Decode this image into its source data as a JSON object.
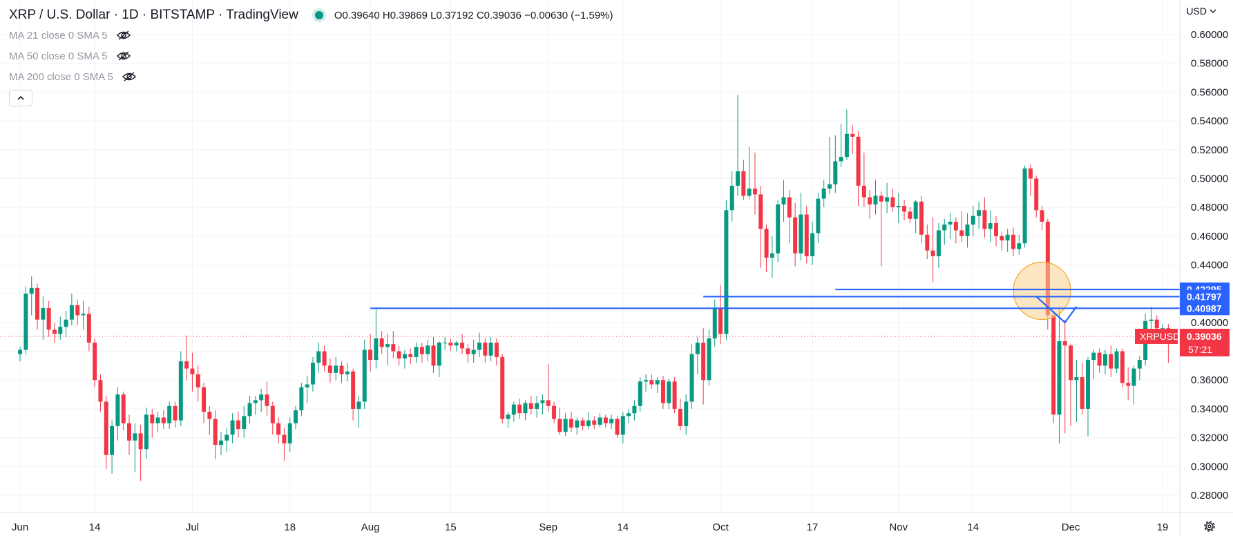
{
  "header": {
    "title": "XRP / U.S. Dollar · 1D · BITSTAMP · TradingView",
    "ohlc": "O0.39640 H0.39869 L0.37192 C0.39036 −0.00630 (−1.59%)"
  },
  "indicators": [
    "MA 21 close 0 SMA 5",
    "MA 50 close 0 SMA 5",
    "MA 200 close 0 SMA 5"
  ],
  "currency": "USD",
  "collapse_glyph": "^",
  "settings_icon": "gear-icon",
  "chart_data": {
    "type": "candlestick",
    "symbol": "XRPUSD",
    "price_scale": {
      "ticks": [
        "0.28000",
        "0.30000",
        "0.32000",
        "0.34000",
        "0.36000",
        "0.38000",
        "0.40000",
        "0.42000",
        "0.44000",
        "0.46000",
        "0.48000",
        "0.50000",
        "0.52000",
        "0.54000",
        "0.56000",
        "0.58000",
        "0.60000"
      ],
      "range": [
        0.268,
        0.624
      ]
    },
    "time_scale": {
      "labels": [
        "Jun",
        "14",
        "Jul",
        "18",
        "Aug",
        "15",
        "Sep",
        "14",
        "Oct",
        "17",
        "Nov",
        "14",
        "Dec",
        "19"
      ],
      "label_days": [
        0,
        13,
        30,
        47,
        61,
        75,
        92,
        105,
        122,
        138,
        153,
        166,
        183,
        199
      ],
      "range": [
        -3.5,
        202
      ]
    },
    "candles": [
      [
        0.378,
        0.383,
        0.373,
        0.381
      ],
      [
        0.381,
        0.425,
        0.378,
        0.42
      ],
      [
        0.42,
        0.432,
        0.405,
        0.424
      ],
      [
        0.424,
        0.427,
        0.395,
        0.402
      ],
      [
        0.402,
        0.418,
        0.388,
        0.41
      ],
      [
        0.41,
        0.415,
        0.39,
        0.395
      ],
      [
        0.395,
        0.4,
        0.386,
        0.392
      ],
      [
        0.392,
        0.404,
        0.388,
        0.397
      ],
      [
        0.397,
        0.408,
        0.39,
        0.402
      ],
      [
        0.402,
        0.42,
        0.398,
        0.412
      ],
      [
        0.412,
        0.416,
        0.398,
        0.405
      ],
      [
        0.405,
        0.415,
        0.395,
        0.406
      ],
      [
        0.406,
        0.411,
        0.38,
        0.386
      ],
      [
        0.386,
        0.389,
        0.355,
        0.36
      ],
      [
        0.36,
        0.364,
        0.338,
        0.345
      ],
      [
        0.345,
        0.349,
        0.298,
        0.308
      ],
      [
        0.308,
        0.332,
        0.295,
        0.328
      ],
      [
        0.328,
        0.355,
        0.318,
        0.35
      ],
      [
        0.35,
        0.352,
        0.325,
        0.33
      ],
      [
        0.33,
        0.336,
        0.308,
        0.318
      ],
      [
        0.318,
        0.33,
        0.296,
        0.323
      ],
      [
        0.323,
        0.329,
        0.29,
        0.312
      ],
      [
        0.312,
        0.341,
        0.305,
        0.336
      ],
      [
        0.336,
        0.34,
        0.32,
        0.33
      ],
      [
        0.33,
        0.338,
        0.324,
        0.334
      ],
      [
        0.334,
        0.339,
        0.326,
        0.33
      ],
      [
        0.33,
        0.345,
        0.326,
        0.342
      ],
      [
        0.342,
        0.345,
        0.327,
        0.332
      ],
      [
        0.332,
        0.38,
        0.328,
        0.373
      ],
      [
        0.373,
        0.391,
        0.36,
        0.368
      ],
      [
        0.368,
        0.379,
        0.352,
        0.364
      ],
      [
        0.364,
        0.37,
        0.345,
        0.355
      ],
      [
        0.355,
        0.358,
        0.33,
        0.338
      ],
      [
        0.338,
        0.342,
        0.322,
        0.333
      ],
      [
        0.333,
        0.339,
        0.305,
        0.315
      ],
      [
        0.315,
        0.324,
        0.308,
        0.318
      ],
      [
        0.318,
        0.327,
        0.31,
        0.322
      ],
      [
        0.322,
        0.337,
        0.316,
        0.332
      ],
      [
        0.332,
        0.338,
        0.32,
        0.326
      ],
      [
        0.326,
        0.342,
        0.32,
        0.335
      ],
      [
        0.335,
        0.349,
        0.33,
        0.344
      ],
      [
        0.344,
        0.349,
        0.336,
        0.346
      ],
      [
        0.346,
        0.354,
        0.338,
        0.35
      ],
      [
        0.35,
        0.359,
        0.335,
        0.342
      ],
      [
        0.342,
        0.345,
        0.322,
        0.33
      ],
      [
        0.33,
        0.334,
        0.316,
        0.322
      ],
      [
        0.322,
        0.327,
        0.304,
        0.316
      ],
      [
        0.316,
        0.334,
        0.31,
        0.33
      ],
      [
        0.33,
        0.342,
        0.326,
        0.339
      ],
      [
        0.339,
        0.358,
        0.335,
        0.355
      ],
      [
        0.355,
        0.363,
        0.344,
        0.357
      ],
      [
        0.357,
        0.376,
        0.352,
        0.372
      ],
      [
        0.372,
        0.386,
        0.365,
        0.38
      ],
      [
        0.38,
        0.384,
        0.366,
        0.37
      ],
      [
        0.37,
        0.375,
        0.358,
        0.365
      ],
      [
        0.365,
        0.376,
        0.36,
        0.37
      ],
      [
        0.37,
        0.373,
        0.358,
        0.364
      ],
      [
        0.364,
        0.372,
        0.359,
        0.366
      ],
      [
        0.366,
        0.368,
        0.332,
        0.34
      ],
      [
        0.34,
        0.349,
        0.327,
        0.345
      ],
      [
        0.345,
        0.388,
        0.34,
        0.381
      ],
      [
        0.381,
        0.392,
        0.366,
        0.374
      ],
      [
        0.374,
        0.41,
        0.368,
        0.389
      ],
      [
        0.389,
        0.394,
        0.378,
        0.383
      ],
      [
        0.383,
        0.392,
        0.37,
        0.385
      ],
      [
        0.385,
        0.394,
        0.375,
        0.38
      ],
      [
        0.38,
        0.384,
        0.37,
        0.375
      ],
      [
        0.375,
        0.381,
        0.368,
        0.378
      ],
      [
        0.378,
        0.382,
        0.371,
        0.376
      ],
      [
        0.376,
        0.386,
        0.372,
        0.383
      ],
      [
        0.383,
        0.386,
        0.372,
        0.378
      ],
      [
        0.378,
        0.388,
        0.373,
        0.384
      ],
      [
        0.384,
        0.39,
        0.365,
        0.37
      ],
      [
        0.37,
        0.387,
        0.362,
        0.386
      ],
      [
        0.386,
        0.39,
        0.381,
        0.386
      ],
      [
        0.386,
        0.389,
        0.38,
        0.384
      ],
      [
        0.384,
        0.387,
        0.38,
        0.386
      ],
      [
        0.386,
        0.392,
        0.378,
        0.382
      ],
      [
        0.382,
        0.385,
        0.372,
        0.378
      ],
      [
        0.378,
        0.388,
        0.372,
        0.381
      ],
      [
        0.381,
        0.393,
        0.376,
        0.386
      ],
      [
        0.386,
        0.389,
        0.372,
        0.377
      ],
      [
        0.377,
        0.39,
        0.373,
        0.386
      ],
      [
        0.386,
        0.389,
        0.37,
        0.376
      ],
      [
        0.376,
        0.378,
        0.33,
        0.333
      ],
      [
        0.333,
        0.338,
        0.327,
        0.336
      ],
      [
        0.336,
        0.345,
        0.331,
        0.343
      ],
      [
        0.343,
        0.347,
        0.333,
        0.337
      ],
      [
        0.337,
        0.346,
        0.332,
        0.344
      ],
      [
        0.344,
        0.349,
        0.336,
        0.34
      ],
      [
        0.34,
        0.349,
        0.334,
        0.344
      ],
      [
        0.344,
        0.35,
        0.336,
        0.346
      ],
      [
        0.346,
        0.371,
        0.338,
        0.342
      ],
      [
        0.342,
        0.345,
        0.33,
        0.333
      ],
      [
        0.333,
        0.341,
        0.322,
        0.324
      ],
      [
        0.324,
        0.337,
        0.321,
        0.333
      ],
      [
        0.333,
        0.338,
        0.324,
        0.327
      ],
      [
        0.327,
        0.334,
        0.322,
        0.332
      ],
      [
        0.332,
        0.334,
        0.325,
        0.328
      ],
      [
        0.328,
        0.338,
        0.326,
        0.332
      ],
      [
        0.332,
        0.335,
        0.326,
        0.329
      ],
      [
        0.329,
        0.337,
        0.327,
        0.334
      ],
      [
        0.334,
        0.336,
        0.327,
        0.33
      ],
      [
        0.33,
        0.336,
        0.326,
        0.333
      ],
      [
        0.333,
        0.335,
        0.32,
        0.322
      ],
      [
        0.322,
        0.338,
        0.316,
        0.335
      ],
      [
        0.335,
        0.34,
        0.33,
        0.337
      ],
      [
        0.337,
        0.346,
        0.332,
        0.342
      ],
      [
        0.342,
        0.362,
        0.338,
        0.359
      ],
      [
        0.359,
        0.364,
        0.352,
        0.36
      ],
      [
        0.36,
        0.364,
        0.354,
        0.357
      ],
      [
        0.357,
        0.362,
        0.351,
        0.36
      ],
      [
        0.36,
        0.363,
        0.34,
        0.344
      ],
      [
        0.344,
        0.361,
        0.34,
        0.359
      ],
      [
        0.359,
        0.362,
        0.337,
        0.34
      ],
      [
        0.34,
        0.347,
        0.325,
        0.328
      ],
      [
        0.328,
        0.35,
        0.322,
        0.345
      ],
      [
        0.345,
        0.385,
        0.34,
        0.378
      ],
      [
        0.378,
        0.39,
        0.364,
        0.386
      ],
      [
        0.386,
        0.396,
        0.343,
        0.36
      ],
      [
        0.36,
        0.395,
        0.356,
        0.389
      ],
      [
        0.389,
        0.416,
        0.383,
        0.41
      ],
      [
        0.41,
        0.426,
        0.385,
        0.392
      ],
      [
        0.392,
        0.485,
        0.388,
        0.478
      ],
      [
        0.478,
        0.505,
        0.47,
        0.495
      ],
      [
        0.495,
        0.558,
        0.488,
        0.505
      ],
      [
        0.505,
        0.513,
        0.485,
        0.488
      ],
      [
        0.488,
        0.522,
        0.486,
        0.493
      ],
      [
        0.493,
        0.518,
        0.475,
        0.489
      ],
      [
        0.489,
        0.495,
        0.438,
        0.465
      ],
      [
        0.465,
        0.468,
        0.435,
        0.445
      ],
      [
        0.445,
        0.46,
        0.431,
        0.448
      ],
      [
        0.448,
        0.485,
        0.442,
        0.482
      ],
      [
        0.482,
        0.499,
        0.47,
        0.487
      ],
      [
        0.487,
        0.492,
        0.455,
        0.473
      ],
      [
        0.473,
        0.483,
        0.439,
        0.448
      ],
      [
        0.448,
        0.49,
        0.443,
        0.475
      ],
      [
        0.475,
        0.481,
        0.441,
        0.446
      ],
      [
        0.446,
        0.47,
        0.44,
        0.462
      ],
      [
        0.462,
        0.49,
        0.455,
        0.486
      ],
      [
        0.486,
        0.499,
        0.48,
        0.493
      ],
      [
        0.493,
        0.529,
        0.489,
        0.496
      ],
      [
        0.496,
        0.53,
        0.49,
        0.512
      ],
      [
        0.512,
        0.538,
        0.508,
        0.515
      ],
      [
        0.515,
        0.548,
        0.513,
        0.531
      ],
      [
        0.531,
        0.537,
        0.517,
        0.529
      ],
      [
        0.529,
        0.533,
        0.481,
        0.495
      ],
      [
        0.495,
        0.518,
        0.48,
        0.487
      ],
      [
        0.487,
        0.492,
        0.472,
        0.482
      ],
      [
        0.482,
        0.499,
        0.475,
        0.488
      ],
      [
        0.488,
        0.491,
        0.439,
        0.484
      ],
      [
        0.484,
        0.497,
        0.476,
        0.487
      ],
      [
        0.487,
        0.493,
        0.477,
        0.48
      ],
      [
        0.48,
        0.49,
        0.469,
        0.481
      ],
      [
        0.481,
        0.485,
        0.471,
        0.477
      ],
      [
        0.477,
        0.48,
        0.469,
        0.472
      ],
      [
        0.472,
        0.485,
        0.462,
        0.484
      ],
      [
        0.484,
        0.488,
        0.455,
        0.461
      ],
      [
        0.461,
        0.468,
        0.444,
        0.45
      ],
      [
        0.45,
        0.473,
        0.428,
        0.446
      ],
      [
        0.446,
        0.469,
        0.438,
        0.464
      ],
      [
        0.464,
        0.472,
        0.454,
        0.468
      ],
      [
        0.468,
        0.476,
        0.458,
        0.47
      ],
      [
        0.47,
        0.473,
        0.455,
        0.464
      ],
      [
        0.464,
        0.477,
        0.456,
        0.46
      ],
      [
        0.46,
        0.476,
        0.452,
        0.468
      ],
      [
        0.468,
        0.481,
        0.46,
        0.474
      ],
      [
        0.474,
        0.484,
        0.465,
        0.478
      ],
      [
        0.478,
        0.487,
        0.459,
        0.465
      ],
      [
        0.465,
        0.478,
        0.456,
        0.469
      ],
      [
        0.469,
        0.474,
        0.453,
        0.46
      ],
      [
        0.46,
        0.463,
        0.45,
        0.457
      ],
      [
        0.457,
        0.465,
        0.449,
        0.461
      ],
      [
        0.461,
        0.466,
        0.446,
        0.451
      ],
      [
        0.451,
        0.461,
        0.447,
        0.455
      ],
      [
        0.455,
        0.509,
        0.452,
        0.507
      ],
      [
        0.507,
        0.51,
        0.488,
        0.5
      ],
      [
        0.5,
        0.502,
        0.473,
        0.478
      ],
      [
        0.478,
        0.481,
        0.464,
        0.47
      ],
      [
        0.47,
        0.472,
        0.395,
        0.405
      ],
      [
        0.405,
        0.408,
        0.33,
        0.336
      ],
      [
        0.336,
        0.41,
        0.316,
        0.387
      ],
      [
        0.387,
        0.402,
        0.323,
        0.384
      ],
      [
        0.384,
        0.385,
        0.328,
        0.36
      ],
      [
        0.36,
        0.374,
        0.331,
        0.362
      ],
      [
        0.362,
        0.372,
        0.336,
        0.34
      ],
      [
        0.34,
        0.376,
        0.321,
        0.374
      ],
      [
        0.374,
        0.381,
        0.361,
        0.379
      ],
      [
        0.379,
        0.382,
        0.365,
        0.37
      ],
      [
        0.37,
        0.381,
        0.364,
        0.378
      ],
      [
        0.378,
        0.384,
        0.362,
        0.368
      ],
      [
        0.368,
        0.382,
        0.365,
        0.38
      ],
      [
        0.38,
        0.382,
        0.355,
        0.358
      ],
      [
        0.358,
        0.369,
        0.346,
        0.356
      ],
      [
        0.356,
        0.37,
        0.343,
        0.368
      ],
      [
        0.368,
        0.377,
        0.36,
        0.374
      ],
      [
        0.374,
        0.406,
        0.37,
        0.401
      ],
      [
        0.401,
        0.411,
        0.388,
        0.402
      ],
      [
        0.402,
        0.405,
        0.395,
        0.396
      ],
      [
        0.396,
        0.399,
        0.393,
        0.396
      ],
      [
        0.396,
        0.399,
        0.372,
        0.39
      ]
    ],
    "support_levels": [
      {
        "value": 0.42295,
        "label": "0.42295",
        "from_day": 142
      },
      {
        "value": 0.41797,
        "label": "0.41797",
        "from_day": 119
      },
      {
        "value": 0.40987,
        "label": "0.40987",
        "from_day": 61
      }
    ],
    "last_price": {
      "value": 0.39036,
      "symbol": "XRPUSD",
      "label": "0.39036",
      "countdown": "57:21"
    },
    "highlight_circle": {
      "center_day": 178,
      "center_price": 0.422,
      "radius_days": 5
    },
    "projection_arrow": {
      "from": [
        177,
        0.418
      ],
      "to": [
        182,
        0.4
      ],
      "tip": [
        184,
        0.411
      ]
    },
    "colors": {
      "up": "#089981",
      "down": "#f23645",
      "level": "#2962ff",
      "grid": "#f0f3fa",
      "axis_text": "#131722",
      "circle_fill": "#fcd28f",
      "circle_stroke": "#f5a623"
    }
  }
}
